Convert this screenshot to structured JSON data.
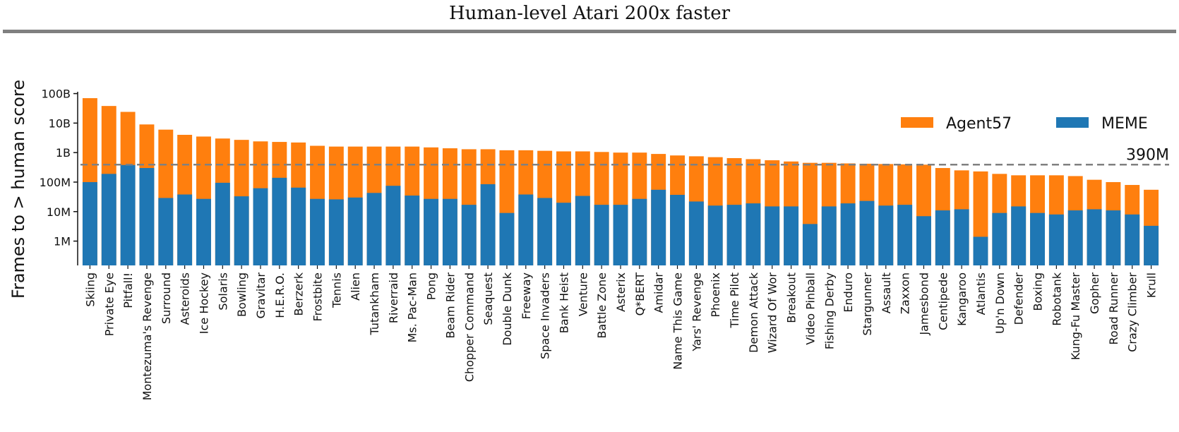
{
  "page": {
    "title": "Human-level Atari 200x faster"
  },
  "chart_data": {
    "type": "bar",
    "stacked": "overlaid",
    "ylabel": "Frames to > human score",
    "yscale": "log",
    "ylim": [
      150000,
      200000000000
    ],
    "yticks": [
      {
        "value": 1000000,
        "label": "1M"
      },
      {
        "value": 10000000,
        "label": "10M"
      },
      {
        "value": 100000000,
        "label": "100M"
      },
      {
        "value": 1000000000,
        "label": "1B"
      },
      {
        "value": 10000000000,
        "label": "10B"
      },
      {
        "value": 100000000000,
        "label": "100B"
      }
    ],
    "reference_line": {
      "value": 390000000,
      "label": "390M",
      "color": "#808080"
    },
    "legend": {
      "placement": "top-right"
    },
    "categories": [
      "Skiing",
      "Private Eye",
      "Pitfall!",
      "Montezuma's Revenge",
      "Surround",
      "Asteroids",
      "Ice Hockey",
      "Solaris",
      "Bowling",
      "Gravitar",
      "H.E.R.O.",
      "Berzerk",
      "Frostbite",
      "Tennis",
      "Alien",
      "Tutankham",
      "Riverraid",
      "Ms. Pac-Man",
      "Pong",
      "Beam Rider",
      "Chopper Command",
      "Seaquest",
      "Double Dunk",
      "Freeway",
      "Space Invaders",
      "Bank Heist",
      "Venture",
      "Battle Zone",
      "Asterix",
      "Q*BERT",
      "Amidar",
      "Name This Game",
      "Yars' Revenge",
      "Phoenix",
      "Time Pilot",
      "Demon Attack",
      "Wizard Of Wor",
      "Breakout",
      "Video Pinball",
      "Fishing Derby",
      "Enduro",
      "Stargunner",
      "Assault",
      "Zaxxon",
      "Jamesbond",
      "Centipede",
      "Kangaroo",
      "Atlantis",
      "Up'n Down",
      "Defender",
      "Boxing",
      "Robotank",
      "Kung-Fu Master",
      "Gopher",
      "Road Runner",
      "Crazy Climber",
      "Krull"
    ],
    "series": [
      {
        "name": "Agent57",
        "color": "#ff7f0e",
        "values": [
          70000000000,
          38000000000,
          24000000000,
          9000000000,
          6000000000,
          4000000000,
          3500000000,
          3000000000,
          2700000000,
          2400000000,
          2300000000,
          2200000000,
          1700000000,
          1600000000,
          1600000000,
          1600000000,
          1600000000,
          1600000000,
          1500000000,
          1400000000,
          1300000000,
          1300000000,
          1200000000,
          1200000000,
          1150000000,
          1100000000,
          1100000000,
          1050000000,
          1000000000,
          1000000000,
          900000000,
          800000000,
          750000000,
          700000000,
          650000000,
          600000000,
          550000000,
          500000000,
          450000000,
          450000000,
          430000000,
          420000000,
          410000000,
          400000000,
          390000000,
          300000000,
          250000000,
          230000000,
          190000000,
          170000000,
          170000000,
          170000000,
          160000000,
          120000000,
          100000000,
          80000000,
          55000000
        ]
      },
      {
        "name": "MEME",
        "color": "#1f77b4",
        "values": [
          100000000,
          190000000,
          380000000,
          300000000,
          29000000,
          38000000,
          27000000,
          95000000,
          33000000,
          62000000,
          140000000,
          65000000,
          27000000,
          26000000,
          30000000,
          43000000,
          75000000,
          35000000,
          27000000,
          27000000,
          17000000,
          85000000,
          9000000,
          38000000,
          29000000,
          20000000,
          34000000,
          17000000,
          17000000,
          27000000,
          55000000,
          37000000,
          22000000,
          16000000,
          17000000,
          19000000,
          15000000,
          15000000,
          3800000,
          15000000,
          19000000,
          23000000,
          16000000,
          17000000,
          7000000,
          11000000,
          12000000,
          1400000,
          9000000,
          15000000,
          9000000,
          8000000,
          11000000,
          12000000,
          11000000,
          8000000,
          3300000
        ]
      }
    ]
  }
}
